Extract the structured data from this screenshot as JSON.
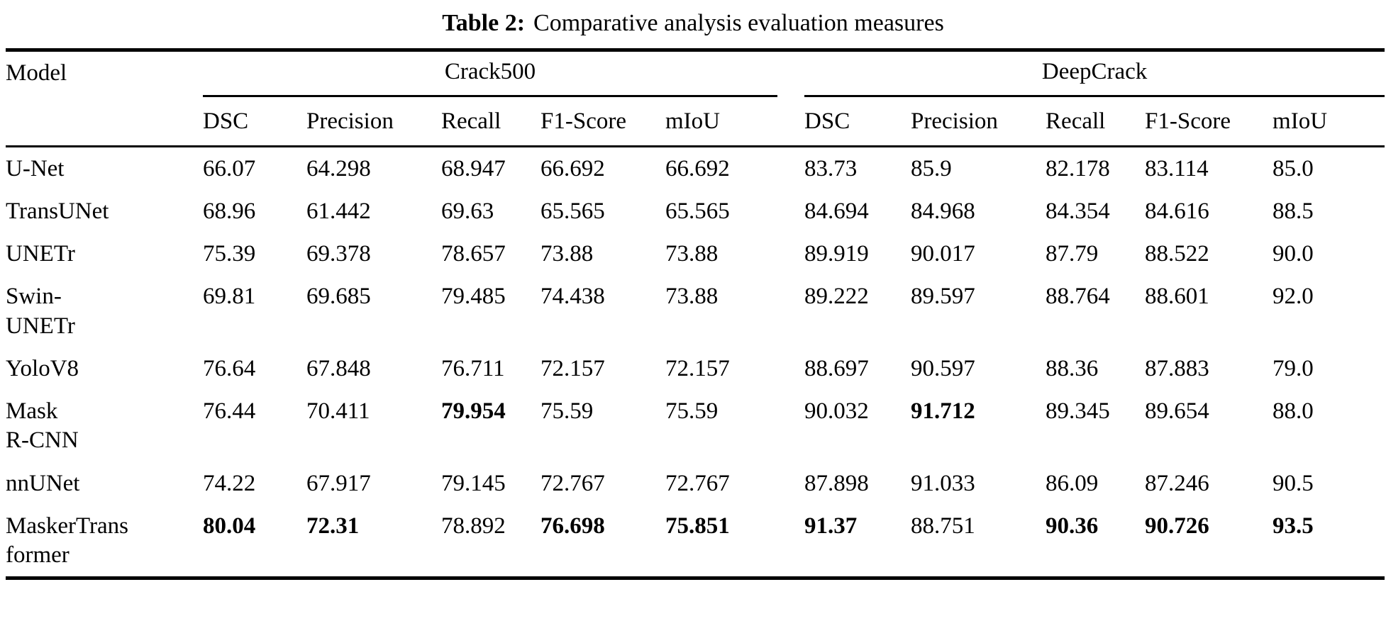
{
  "title": {
    "label": "Table 2:",
    "text": "Comparative analysis evaluation measures"
  },
  "table": {
    "model_header": "Model",
    "groups": [
      {
        "name": "Crack500",
        "columns": [
          "DSC",
          "Precision",
          "Recall",
          "F1-Score",
          "mIoU"
        ]
      },
      {
        "name": "DeepCrack",
        "columns": [
          "DSC",
          "Precision",
          "Recall",
          "F1-Score",
          "mIoU"
        ]
      }
    ],
    "rows": [
      {
        "model": [
          "U-Net"
        ],
        "values": [
          "66.07",
          "64.298",
          "68.947",
          "66.692",
          "66.692",
          "83.73",
          "85.9",
          "82.178",
          "83.114",
          "85.0"
        ],
        "bold": []
      },
      {
        "model": [
          "TransUNet"
        ],
        "values": [
          "68.96",
          "61.442",
          "69.63",
          "65.565",
          "65.565",
          "84.694",
          "84.968",
          "84.354",
          "84.616",
          "88.5"
        ],
        "bold": []
      },
      {
        "model": [
          "UNETr"
        ],
        "values": [
          "75.39",
          "69.378",
          "78.657",
          "73.88",
          "73.88",
          "89.919",
          "90.017",
          "87.79",
          "88.522",
          "90.0"
        ],
        "bold": []
      },
      {
        "model": [
          "Swin-",
          "UNETr"
        ],
        "values": [
          "69.81",
          "69.685",
          "79.485",
          "74.438",
          "73.88",
          "89.222",
          "89.597",
          "88.764",
          "88.601",
          "92.0"
        ],
        "bold": []
      },
      {
        "model": [
          "YoloV8"
        ],
        "values": [
          "76.64",
          "67.848",
          "76.711",
          "72.157",
          "72.157",
          "88.697",
          "90.597",
          "88.36",
          "87.883",
          "79.0"
        ],
        "bold": []
      },
      {
        "model": [
          "Mask",
          "R-CNN"
        ],
        "values": [
          "76.44",
          "70.411",
          "79.954",
          "75.59",
          "75.59",
          "90.032",
          "91.712",
          "89.345",
          "89.654",
          "88.0"
        ],
        "bold": [
          2,
          6
        ]
      },
      {
        "model": [
          "nnUNet"
        ],
        "values": [
          "74.22",
          "67.917",
          "79.145",
          "72.767",
          "72.767",
          "87.898",
          "91.033",
          "86.09",
          "87.246",
          "90.5"
        ],
        "bold": []
      },
      {
        "model": [
          "MaskerTrans",
          "former"
        ],
        "values": [
          "80.04",
          "72.31",
          "78.892",
          "76.698",
          "75.851",
          "91.37",
          "88.751",
          "90.36",
          "90.726",
          "93.5"
        ],
        "bold": [
          0,
          1,
          3,
          4,
          5,
          7,
          8,
          9
        ]
      }
    ]
  }
}
